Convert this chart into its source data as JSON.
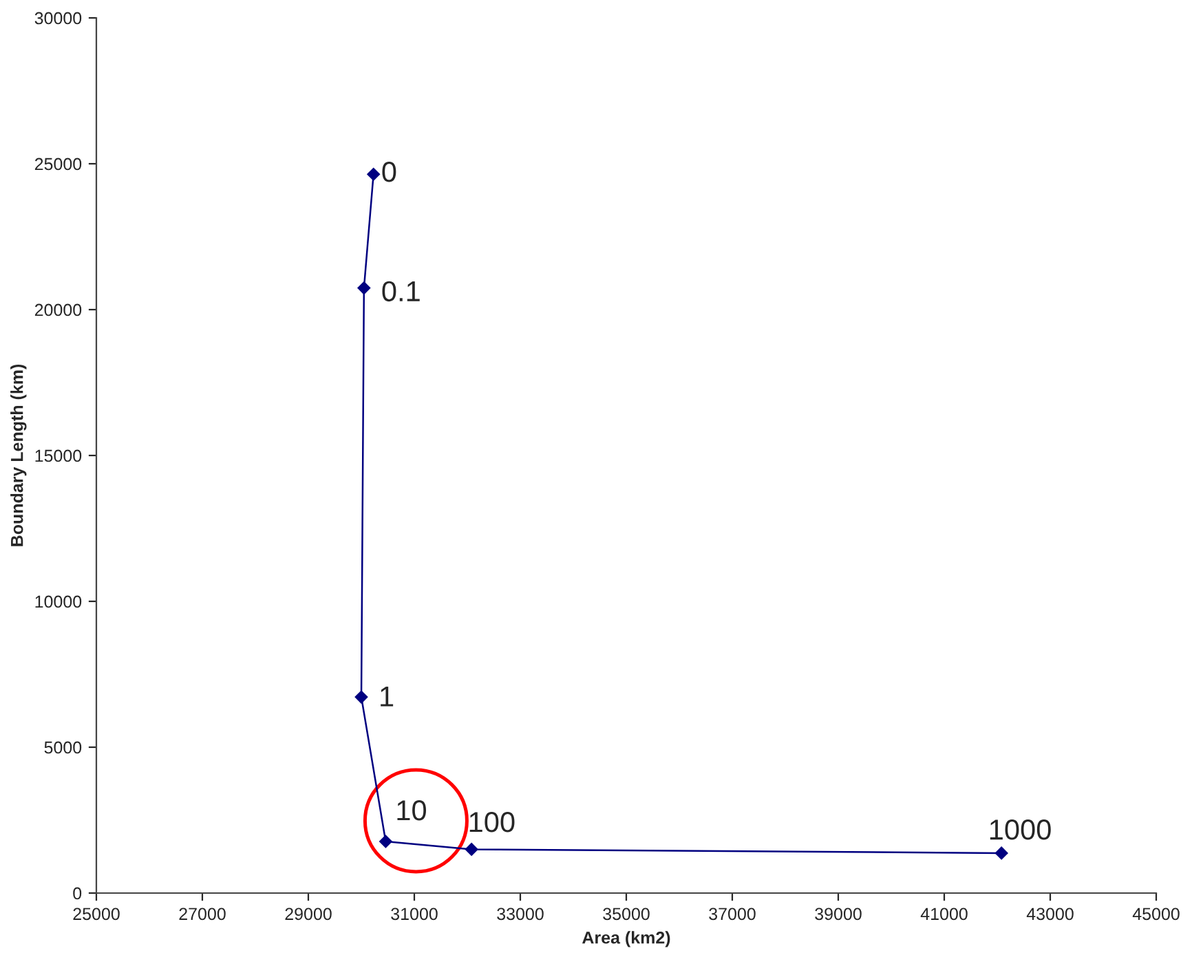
{
  "chart_data": {
    "type": "line",
    "xlabel": "Area (km2)",
    "ylabel": "Boundary Length (km)",
    "x": [
      30230,
      30050,
      30000,
      30460,
      32080,
      42080
    ],
    "series": [
      {
        "color": "#000080",
        "values": [
          24640,
          20740,
          6720,
          1770,
          1500,
          1370
        ]
      }
    ],
    "annotations": [
      {
        "text": "0",
        "x": 30230,
        "y": 24640
      },
      {
        "text": "0.1",
        "x": 30050,
        "y": 20740
      },
      {
        "text": "1",
        "x": 30000,
        "y": 6720
      },
      {
        "text": "10",
        "x": 30460,
        "y": 1770
      },
      {
        "text": "100",
        "x": 32080,
        "y": 1500
      },
      {
        "text": "1000",
        "x": 42080,
        "y": 1370
      }
    ],
    "xlim": [
      25000,
      45000
    ],
    "xticks": [
      25000,
      27000,
      29000,
      31000,
      33000,
      35000,
      37000,
      39000,
      41000,
      43000,
      45000
    ],
    "ylim": [
      0,
      30000
    ],
    "yticks": [
      0,
      5000,
      10000,
      15000,
      20000,
      25000,
      30000
    ],
    "marker": "diamond",
    "line_style": "solid",
    "grid": false,
    "legend": false
  }
}
